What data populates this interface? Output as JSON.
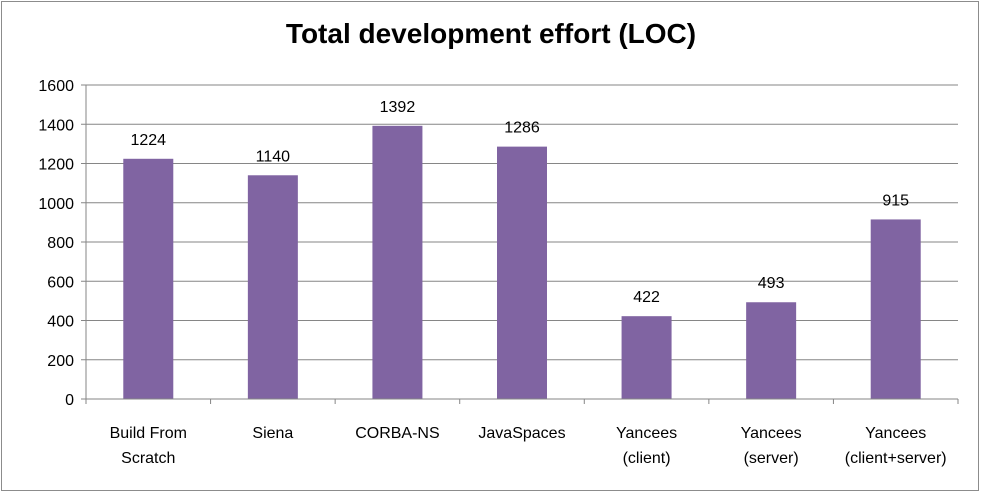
{
  "chart_data": {
    "type": "bar",
    "title": "Total development effort (LOC)",
    "xlabel": "",
    "ylabel": "",
    "categories": [
      [
        "Build From",
        "Scratch"
      ],
      [
        "Siena"
      ],
      [
        "CORBA-NS"
      ],
      [
        "JavaSpaces"
      ],
      [
        "Yancees",
        "(client)"
      ],
      [
        "Yancees",
        "(server)"
      ],
      [
        "Yancees",
        "(client+server)"
      ]
    ],
    "values": [
      1224,
      1140,
      1392,
      1286,
      422,
      493,
      915
    ],
    "data_labels": [
      "1224",
      "1140",
      "1392",
      "1286",
      "422",
      "493",
      "915"
    ],
    "ylim": [
      0,
      1600
    ],
    "yticks": [
      0,
      200,
      400,
      600,
      800,
      1000,
      1200,
      1400,
      1600
    ],
    "grid": true,
    "legend": "none",
    "colors": {
      "bar": "#8064a2",
      "grid": "#868686",
      "axis": "#868686"
    }
  }
}
